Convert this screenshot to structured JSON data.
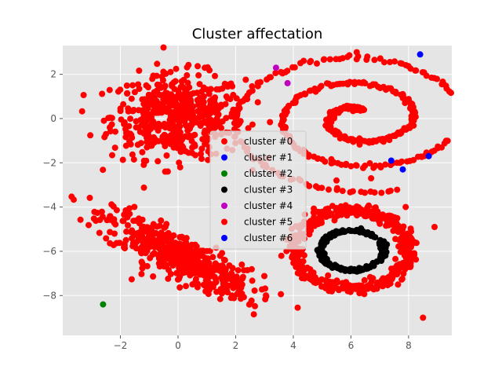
{
  "chart_data": {
    "type": "scatter",
    "title": "Cluster affectation",
    "xlabel": "",
    "ylabel": "",
    "xlim": [
      -4.0,
      9.5
    ],
    "ylim": [
      -9.8,
      3.3
    ],
    "xticks": [
      -2,
      0,
      2,
      4,
      6,
      8
    ],
    "yticks": [
      2,
      0,
      -2,
      -4,
      -6,
      -8
    ],
    "xtick_labels": [
      "−2",
      "0",
      "2",
      "4",
      "6",
      "8"
    ],
    "ytick_labels": [
      "2",
      "0",
      "−2",
      "−4",
      "−6",
      "−8"
    ],
    "grid": true,
    "legend_position": "center",
    "series": [
      {
        "name": "cluster #0",
        "color": "#ff0000",
        "shape": "blob-top-left",
        "center": [
          0.0,
          0.1
        ],
        "spread": [
          1.15,
          0.95
        ]
      },
      {
        "name": "cluster #1",
        "color": "#0000ff",
        "points": [
          [
            8.4,
            2.9
          ],
          [
            7.4,
            -1.9
          ],
          [
            7.8,
            -2.3
          ],
          [
            8.7,
            -1.7
          ]
        ]
      },
      {
        "name": "cluster #2",
        "color": "#008000",
        "points": [
          [
            -2.6,
            -8.4
          ]
        ]
      },
      {
        "name": "cluster #3",
        "color": "#000000",
        "shape": "inner-ring",
        "center": [
          6.05,
          -5.95
        ],
        "radius": [
          1.1,
          0.9
        ]
      },
      {
        "name": "cluster #4",
        "color": "#bf00bf",
        "points": [
          [
            3.4,
            2.3
          ],
          [
            3.8,
            1.6
          ]
        ]
      },
      {
        "name": "cluster #5",
        "color": "#ff0000",
        "shape": "spiral-and-outer-ring",
        "spiral_center": [
          6.3,
          0.0
        ],
        "ring_center": [
          6.0,
          -5.9
        ],
        "ring_radius": [
          2.0,
          1.75
        ]
      },
      {
        "name": "cluster #6",
        "color": "#0000ff",
        "points": []
      }
    ],
    "bottom_left_blob": {
      "color": "#ff0000",
      "center": [
        0.0,
        -6.2
      ],
      "spread": [
        1.5,
        1.0
      ]
    },
    "outliers": [
      [
        6.2,
        3.0
      ],
      [
        8.5,
        -9.0
      ],
      [
        8.9,
        -4.9
      ],
      [
        7.9,
        -4.0
      ],
      [
        6.7,
        -2.7
      ],
      [
        5.5,
        -2.8
      ]
    ]
  }
}
